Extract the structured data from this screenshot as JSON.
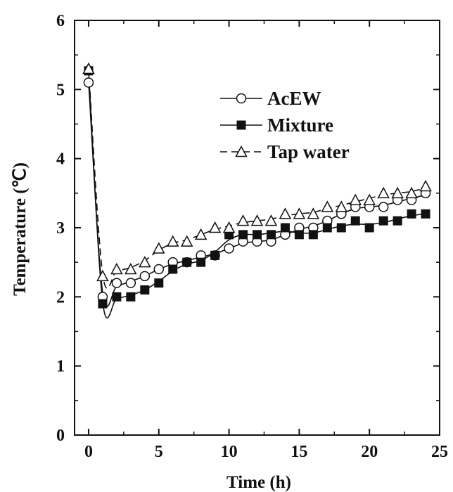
{
  "chart_data": {
    "type": "scatter",
    "xlabel": "Time (h)",
    "ylabel": "Temperature (℃)",
    "xlim": [
      -1,
      25
    ],
    "ylim": [
      0,
      6
    ],
    "x_ticks": [
      "0",
      "5",
      "10",
      "15",
      "20",
      "25"
    ],
    "y_ticks": [
      "0",
      "1",
      "2",
      "3",
      "4",
      "5",
      "6"
    ],
    "legend_position": "upper-right",
    "grid": false,
    "series": [
      {
        "name": "AcEW",
        "marker": "open-circle",
        "line": "solid",
        "x": [
          0,
          1,
          2,
          3,
          4,
          5,
          6,
          7,
          8,
          9,
          10,
          11,
          12,
          13,
          14,
          15,
          16,
          17,
          18,
          19,
          20,
          21,
          22,
          23,
          24
        ],
        "y": [
          5.1,
          2.0,
          2.2,
          2.2,
          2.3,
          2.4,
          2.5,
          2.5,
          2.6,
          2.6,
          2.7,
          2.8,
          2.8,
          2.8,
          2.9,
          3.0,
          3.0,
          3.1,
          3.2,
          3.3,
          3.3,
          3.3,
          3.4,
          3.4,
          3.5
        ]
      },
      {
        "name": "Mixture",
        "marker": "filled-square",
        "line": "solid",
        "x": [
          0,
          1,
          2,
          3,
          4,
          5,
          6,
          7,
          8,
          9,
          10,
          11,
          12,
          13,
          14,
          15,
          16,
          17,
          18,
          19,
          20,
          21,
          22,
          23,
          24
        ],
        "y": [
          5.27,
          1.9,
          2.0,
          2.0,
          2.1,
          2.2,
          2.4,
          2.5,
          2.5,
          2.6,
          2.9,
          2.9,
          2.9,
          2.9,
          3.0,
          2.9,
          2.9,
          3.0,
          3.0,
          3.1,
          3.0,
          3.1,
          3.1,
          3.2,
          3.2
        ]
      },
      {
        "name": "Tap water",
        "marker": "open-triangle",
        "line": "dashed",
        "x": [
          0,
          1,
          2,
          3,
          4,
          5,
          6,
          7,
          8,
          9,
          10,
          11,
          12,
          13,
          14,
          15,
          16,
          17,
          18,
          19,
          20,
          21,
          22,
          23,
          24
        ],
        "y": [
          5.3,
          2.3,
          2.4,
          2.4,
          2.5,
          2.7,
          2.8,
          2.8,
          2.9,
          3.0,
          3.0,
          3.1,
          3.1,
          3.1,
          3.2,
          3.2,
          3.2,
          3.3,
          3.3,
          3.4,
          3.4,
          3.5,
          3.5,
          3.5,
          3.6
        ]
      }
    ]
  }
}
